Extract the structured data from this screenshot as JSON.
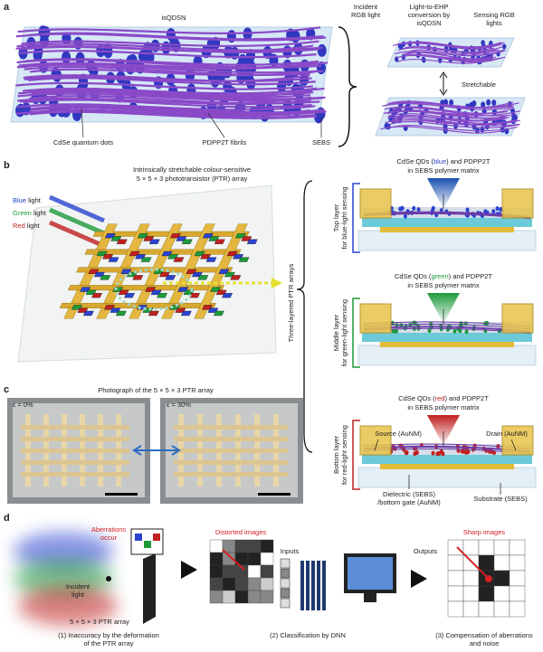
{
  "panel_a": {
    "label": "a",
    "network_title": "isQDSN",
    "callouts": [
      "CdSe quantum dots",
      "PDPP2T fibrils",
      "SEBS"
    ],
    "steps": [
      [
        "Incident",
        "RGB light"
      ],
      [
        "Light-to-EHP",
        "conversion by",
        "isQDSN"
      ],
      [
        "Sensing RGB",
        "lights"
      ]
    ],
    "stretch": "Stretchable"
  },
  "panel_b": {
    "label": "b",
    "array_title": [
      "Intrinsically stretchable colour-sensitive",
      "5 × 5 × 3 phototransistor (PTR) array"
    ],
    "lights": [
      {
        "word": "Blue",
        "suffix": " light"
      },
      {
        "word": "Green",
        "suffix": " light"
      },
      {
        "word": "Red",
        "suffix": " light"
      }
    ],
    "stack_label": "Three-layered PTR arrays",
    "layers": [
      {
        "side": [
          "Top layer",
          "for blue-light sensing"
        ],
        "material": [
          "CdSe QDs (",
          "blue",
          ") and PDPP2T"
        ],
        "matrix": "in SEBS polymer matrix"
      },
      {
        "side": [
          "Middle layer",
          "for green-light sensing"
        ],
        "material": [
          "CdSe QDs (",
          "green",
          ") and PDPP2T"
        ],
        "matrix": "in SEBS polymer matrix"
      },
      {
        "side": [
          "Bottom layer",
          "for red-light sensing"
        ],
        "material": [
          "CdSe QDs (",
          "red",
          ") and PDPP2T"
        ],
        "matrix": "in SEBS polymer matrix"
      }
    ],
    "device_labels": {
      "source": "Source (AuNM)",
      "drain": "Drain (AuNM)",
      "dielectric": [
        "Dielectric (SEBS)",
        "/bottom gate (AuNM)"
      ],
      "substrate": "Substrate (SEBS)"
    }
  },
  "panel_c": {
    "label": "c",
    "title": "Photograph of the 5 × 5 × 3 PTR array",
    "strains": [
      "ε = 0%",
      "ε = 30%"
    ]
  },
  "panel_d": {
    "label": "d",
    "aberrations": [
      "Aberrations",
      "occur"
    ],
    "incident": [
      "Incident",
      "light"
    ],
    "array": "5 × 5 × 3 PTR array",
    "distorted": "Distorted images",
    "inputs": "Inputs",
    "outputs": "Outputs",
    "sharp": "Sharp images",
    "steps": [
      [
        "(1) Inaccuracy by the deformation",
        "of the PTR array"
      ],
      [
        "(2) Classification by DNN"
      ],
      [
        "(3) Compensation of aberrations",
        "and noise"
      ]
    ]
  }
}
